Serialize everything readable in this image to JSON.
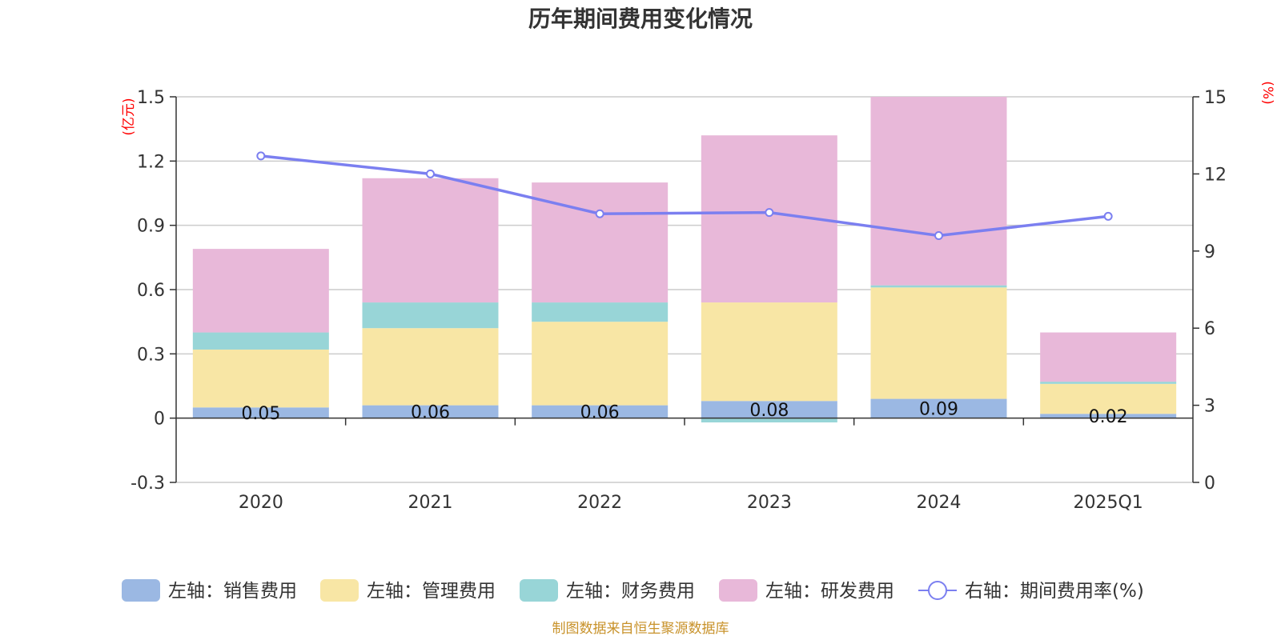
{
  "chart_data": {
    "type": "bar",
    "stacked": true,
    "title": "历年期间费用变化情况",
    "source": "制图数据来自恒生聚源数据库",
    "categories": [
      "2020",
      "2021",
      "2022",
      "2023",
      "2024",
      "2025Q1"
    ],
    "left_axis": {
      "unit": "(亿元)",
      "min": -0.3,
      "max": 1.5,
      "ticks": [
        -0.3,
        0,
        0.3,
        0.6,
        0.9,
        1.2,
        1.5
      ],
      "tick_labels": [
        "-0.3",
        "0",
        "0.3",
        "0.6",
        "0.9",
        "1.2",
        "1.5"
      ]
    },
    "right_axis": {
      "unit": "(%)",
      "min": 0,
      "max": 15,
      "ticks": [
        0,
        3,
        6,
        9,
        12,
        15
      ],
      "tick_labels": [
        "0",
        "3",
        "6",
        "9",
        "12",
        "15"
      ]
    },
    "series": [
      {
        "name": "左轴：销售费用",
        "axis": "left",
        "type": "bar",
        "color": "#9bb8e3",
        "values": [
          0.05,
          0.06,
          0.06,
          0.08,
          0.09,
          0.02
        ],
        "labels": [
          "0.05",
          "0.06",
          "0.06",
          "0.08",
          "0.09",
          "0.02"
        ]
      },
      {
        "name": "左轴：管理费用",
        "axis": "left",
        "type": "bar",
        "color": "#f8e6a5",
        "values": [
          0.27,
          0.36,
          0.39,
          0.46,
          0.52,
          0.14
        ]
      },
      {
        "name": "左轴：财务费用",
        "axis": "left",
        "type": "bar",
        "color": "#98d5d7",
        "values": [
          0.08,
          0.12,
          0.09,
          -0.02,
          0.01,
          0.01
        ]
      },
      {
        "name": "左轴：研发费用",
        "axis": "left",
        "type": "bar",
        "color": "#e8b8d9",
        "values": [
          0.39,
          0.58,
          0.56,
          0.78,
          0.88,
          0.23
        ]
      },
      {
        "name": "右轴：期间费用率(%)",
        "axis": "right",
        "type": "line",
        "color": "#7b7ff0",
        "values": [
          12.7,
          12.0,
          10.45,
          10.5,
          9.6,
          10.35
        ]
      }
    ]
  }
}
